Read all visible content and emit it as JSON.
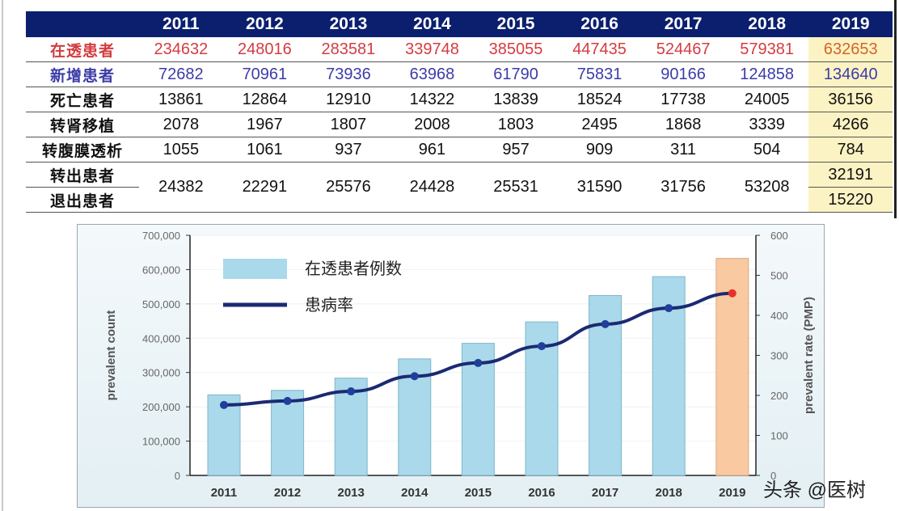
{
  "table": {
    "years": [
      "2011",
      "2012",
      "2013",
      "2014",
      "2015",
      "2016",
      "2017",
      "2018",
      "2019"
    ],
    "rows": [
      {
        "label": "在透患者",
        "values": [
          "234632",
          "248016",
          "283581",
          "339748",
          "385055",
          "447435",
          "524467",
          "579381",
          "632653"
        ]
      },
      {
        "label": "新增患者",
        "values": [
          "72682",
          "70961",
          "73936",
          "63968",
          "61790",
          "75831",
          "90166",
          "124858",
          "134640"
        ]
      },
      {
        "label": "死亡患者",
        "values": [
          "13861",
          "12864",
          "12910",
          "14322",
          "13839",
          "18524",
          "17738",
          "24005",
          "36156"
        ]
      },
      {
        "label": "转肾移植",
        "values": [
          "2078",
          "1967",
          "1807",
          "2008",
          "1803",
          "2495",
          "1868",
          "3339",
          "4266"
        ]
      },
      {
        "label": "转腹膜透析",
        "values": [
          "1055",
          "1061",
          "937",
          "961",
          "957",
          "909",
          "311",
          "504",
          "784"
        ]
      }
    ],
    "merged": {
      "labels": [
        "转出患者",
        "退出患者"
      ],
      "values": [
        "24382",
        "22291",
        "25576",
        "24428",
        "25531",
        "31590",
        "31756",
        "53208"
      ],
      "last": [
        "32191",
        "15220"
      ]
    }
  },
  "chart_data": {
    "type": "bar+line",
    "categories": [
      "2011",
      "2012",
      "2013",
      "2014",
      "2015",
      "2016",
      "2017",
      "2018",
      "2019"
    ],
    "series": [
      {
        "name": "在透患者例数",
        "type": "bar",
        "axis": "left",
        "values": [
          234632,
          248016,
          283581,
          339748,
          385055,
          447435,
          524467,
          579381,
          632653
        ]
      },
      {
        "name": "患病率",
        "type": "line",
        "axis": "right",
        "values": [
          176,
          186,
          210,
          248,
          281,
          323,
          378,
          418,
          455
        ]
      }
    ],
    "ylabel": "prevalent count",
    "y2label": "prevalent rate (PMP)",
    "ylim": [
      0,
      700000
    ],
    "y2lim": [
      0,
      600
    ],
    "yticks": [
      "0",
      "100,000",
      "200,000",
      "300,000",
      "400,000",
      "500,000",
      "600,000",
      "700,000"
    ],
    "y2ticks": [
      "0",
      "100",
      "200",
      "300",
      "400",
      "500",
      "600"
    ],
    "legend": "top-left",
    "colors": {
      "bar": "#a9d9ea",
      "highlight_bar": "#f9c9a1",
      "line": "#1b2a72",
      "highlight_point": "#e8302a"
    }
  },
  "watermark": "头条 @医树"
}
